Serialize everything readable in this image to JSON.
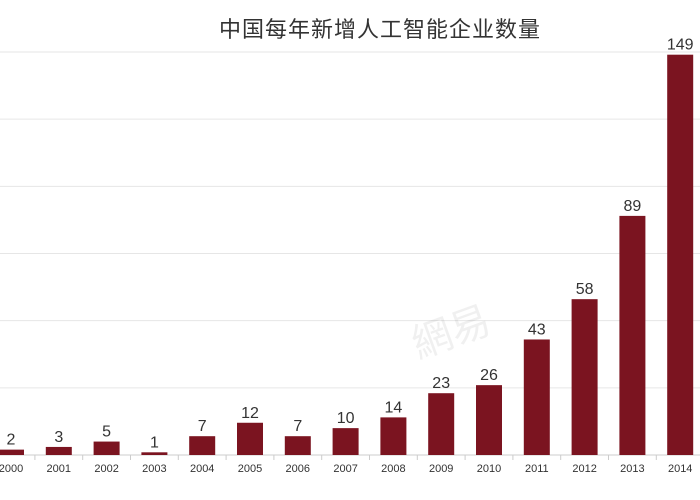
{
  "chart_data": {
    "type": "bar",
    "title": "中国每年新增人工智能企业数量",
    "categories": [
      "2000",
      "2001",
      "2002",
      "2003",
      "2004",
      "2005",
      "2006",
      "2007",
      "2008",
      "2009",
      "2010",
      "2011",
      "2012",
      "2013",
      "2014"
    ],
    "values": [
      2,
      3,
      5,
      1,
      7,
      12,
      7,
      10,
      14,
      23,
      26,
      43,
      58,
      89,
      149
    ],
    "ylim": [
      0,
      150
    ],
    "grid": true,
    "bar_color": "#7b1420",
    "gridline_color": "#e6e6e6",
    "axis_color": "#cccccc"
  },
  "watermark": "網易"
}
